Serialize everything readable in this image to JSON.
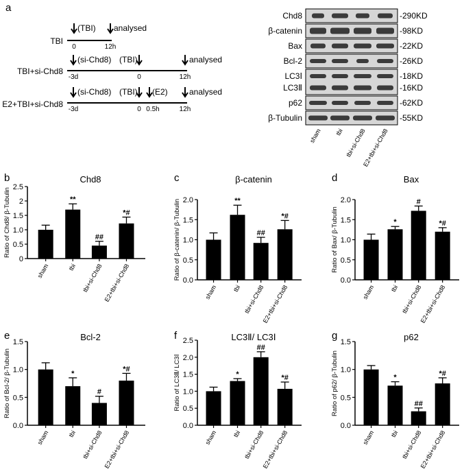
{
  "panel_a": {
    "letter": "a",
    "schemes": [
      {
        "name": "TBI",
        "events": [
          {
            "at": "0",
            "label": "(TBI)"
          },
          {
            "at": "12h",
            "label": "analysed"
          }
        ]
      },
      {
        "name": "TBI+si-Chd8",
        "events": [
          {
            "at": "-3d",
            "label": "(si-Chd8)"
          },
          {
            "at": "0",
            "label": "(TBI)"
          },
          {
            "at": "12h",
            "label": "analysed"
          }
        ]
      },
      {
        "name": "E2+TBI+si-Chd8",
        "events": [
          {
            "at": "-3d",
            "label": "(si-Chd8)"
          },
          {
            "at": "0",
            "label": "(TBI)"
          },
          {
            "at": "0.5h",
            "label": "(E2)"
          },
          {
            "at": "12h",
            "label": "analysed"
          }
        ]
      }
    ],
    "blot": {
      "rows": [
        {
          "protein": "Chd8",
          "size": "-290KD"
        },
        {
          "protein": "β-catenin",
          "size": "-98KD"
        },
        {
          "protein": "Bax",
          "size": "-22KD"
        },
        {
          "protein": "Bcl-2",
          "size": "-26KD"
        },
        {
          "protein": "LC3Ⅰ",
          "size": "-18KD"
        },
        {
          "protein": "LC3Ⅱ",
          "size": "-16KD"
        },
        {
          "protein": "p62",
          "size": "-62KD"
        },
        {
          "protein": "β-Tubulin",
          "size": "-55KD"
        }
      ],
      "lanes": [
        "sham",
        "tbi",
        "tbi+si-Chd8",
        "E2+tbi+si-Chd8"
      ]
    }
  },
  "colors": {
    "bar": "#000000",
    "axis": "#000000",
    "band": "#2a2a2a",
    "blot_bg": "#d6d6d6"
  },
  "chart_data": [
    {
      "panel": "b",
      "type": "bar",
      "title": "Chd8",
      "ylabel": "Ratio of Chd8/ β-Tubulin",
      "categories": [
        "sham",
        "tbi",
        "tbi+si-Chd8",
        "E2+tbi+si-Chd8"
      ],
      "values": [
        1.0,
        1.7,
        0.45,
        1.22
      ],
      "errors": [
        0.16,
        0.2,
        0.15,
        0.22
      ],
      "annotations": [
        "",
        "**",
        "##",
        "*#"
      ],
      "ylim": [
        0,
        2.5
      ],
      "yticks": [
        "0",
        "0.5",
        "1.0",
        "1.5",
        "2",
        "2.5"
      ]
    },
    {
      "panel": "c",
      "type": "bar",
      "title": "β-catenin",
      "ylabel": "Ratio of β-catenin/ β-Tubulin",
      "categories": [
        "sham",
        "tbi",
        "tbi+si-Chd8",
        "E2+tbi+si-Chd8"
      ],
      "values": [
        1.0,
        1.62,
        0.92,
        1.26
      ],
      "errors": [
        0.17,
        0.24,
        0.14,
        0.22
      ],
      "annotations": [
        "",
        "**",
        "##",
        "*#"
      ],
      "ylim": [
        0,
        2.0
      ],
      "yticks": [
        "0.0",
        "0.5",
        "1.0",
        "1.5",
        "2.0"
      ]
    },
    {
      "panel": "d",
      "type": "bar",
      "title": "Bax",
      "ylabel": "Ratio of Bax/ β-Tubulin",
      "categories": [
        "sham",
        "tbi",
        "tbi+si-Chd8",
        "E2+tbi+si-Chd8"
      ],
      "values": [
        1.0,
        1.26,
        1.72,
        1.2
      ],
      "errors": [
        0.14,
        0.07,
        0.12,
        0.1
      ],
      "annotations": [
        "",
        "*",
        "#",
        "*#"
      ],
      "ylim": [
        0,
        2.0
      ],
      "yticks": [
        "0.0",
        "0.5",
        "1.0",
        "1.5",
        "2.0"
      ]
    },
    {
      "panel": "e",
      "type": "bar",
      "title": "Bcl-2",
      "ylabel": "Ratio of Bcl-2/ β-Tubulin",
      "categories": [
        "sham",
        "tbi",
        "tbi+si-Chd8",
        "E2+tbi+si-Chd8"
      ],
      "values": [
        1.0,
        0.7,
        0.4,
        0.8
      ],
      "errors": [
        0.12,
        0.15,
        0.12,
        0.13
      ],
      "annotations": [
        "",
        "*",
        "#",
        "*#"
      ],
      "ylim": [
        0,
        1.5
      ],
      "yticks": [
        "0.0",
        "0.5",
        "1.0",
        "1.5"
      ]
    },
    {
      "panel": "f",
      "type": "bar",
      "title": "LC3Ⅱ/ LC3Ⅰ",
      "ylabel": "Ratio of LC3Ⅱ/ LC3Ⅰ",
      "categories": [
        "sham",
        "tbi",
        "tbi+si-Chd8",
        "E2+tbi+si-Chd8"
      ],
      "values": [
        1.0,
        1.3,
        2.0,
        1.07
      ],
      "errors": [
        0.12,
        0.07,
        0.16,
        0.2
      ],
      "annotations": [
        "",
        "*",
        "##",
        "*#"
      ],
      "ylim": [
        0,
        2.5
      ],
      "yticks": [
        "0.0",
        "0.5",
        "1.0",
        "1.5",
        "2.0",
        "2.5"
      ]
    },
    {
      "panel": "g",
      "type": "bar",
      "title": "p62",
      "ylabel": "Ratio of p62/ β-Tubulin",
      "categories": [
        "sham",
        "tbi",
        "tbi+si-Chd8",
        "E2+tbi+si-Chd8"
      ],
      "values": [
        1.0,
        0.71,
        0.25,
        0.75
      ],
      "errors": [
        0.07,
        0.07,
        0.06,
        0.1
      ],
      "annotations": [
        "",
        "*",
        "##",
        "*#"
      ],
      "ylim": [
        0,
        1.5
      ],
      "yticks": [
        "0.0",
        "0.5",
        "1.0",
        "1.5"
      ]
    }
  ]
}
